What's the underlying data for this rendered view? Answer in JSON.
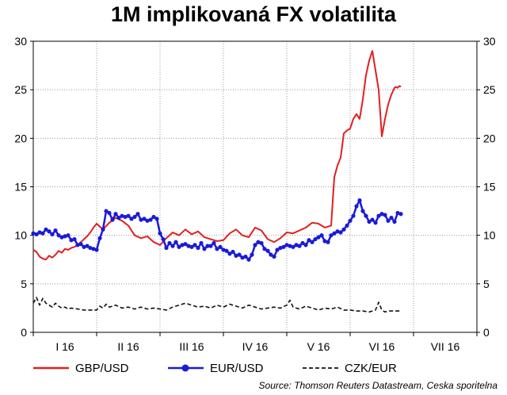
{
  "chart_data": {
    "type": "line",
    "title": "1M implikovaná FX volatilita",
    "source": "Source: Thomson Reuters Datastream, Ceska sporitelna",
    "ylim": [
      0,
      30
    ],
    "y_ticks": [
      "0",
      "5",
      "10",
      "15",
      "20",
      "25",
      "30"
    ],
    "x_categories": [
      "I 16",
      "II 16",
      "III 16",
      "IV 16",
      "V 16",
      "VI 16",
      "VII 16"
    ],
    "grid": true,
    "legend": "bottom",
    "series": [
      {
        "name": "GBP/USD",
        "color": "#e02020",
        "style": "solid",
        "t": [
          0,
          0.05,
          0.1,
          0.15,
          0.2,
          0.25,
          0.3,
          0.35,
          0.4,
          0.45,
          0.5,
          0.55,
          0.6,
          0.65,
          0.7,
          0.75,
          0.8,
          0.85,
          0.9,
          0.95,
          1.0,
          1.1,
          1.2,
          1.3,
          1.4,
          1.5,
          1.6,
          1.7,
          1.8,
          1.9,
          2.0,
          2.1,
          2.2,
          2.3,
          2.4,
          2.5,
          2.6,
          2.7,
          2.8,
          2.9,
          3.0,
          3.1,
          3.2,
          3.3,
          3.4,
          3.5,
          3.6,
          3.7,
          3.8,
          3.9,
          4.0,
          4.1,
          4.2,
          4.3,
          4.4,
          4.5,
          4.6,
          4.7,
          4.75,
          4.8,
          4.85,
          4.9,
          4.95,
          5.0,
          5.05,
          5.1,
          5.15,
          5.2,
          5.25,
          5.3,
          5.35,
          5.4,
          5.45,
          5.5,
          5.55,
          5.6,
          5.65,
          5.7,
          5.72,
          5.75,
          5.78,
          5.8
        ],
        "values": [
          8.5,
          8.3,
          7.8,
          7.6,
          7.5,
          7.9,
          7.7,
          8.0,
          8.4,
          8.2,
          8.6,
          8.5,
          8.7,
          8.8,
          9.0,
          9.3,
          9.6,
          9.9,
          10.3,
          10.8,
          11.2,
          10.6,
          11.3,
          11.8,
          11.5,
          11.0,
          10.0,
          9.7,
          9.9,
          9.3,
          9.0,
          9.7,
          10.3,
          10.0,
          10.6,
          10.1,
          10.4,
          9.8,
          9.6,
          9.4,
          9.5,
          10.2,
          10.6,
          10.0,
          9.8,
          10.8,
          10.5,
          9.6,
          9.3,
          9.7,
          10.3,
          10.2,
          10.5,
          10.8,
          11.3,
          11.2,
          10.8,
          11.0,
          16.0,
          17.2,
          18.0,
          20.5,
          20.8,
          21.0,
          22.0,
          22.5,
          22.0,
          24.0,
          26.5,
          28.0,
          29.0,
          27.0,
          25.0,
          20.2,
          22.0,
          23.5,
          24.5,
          25.2,
          25.3,
          25.2,
          25.4,
          25.3
        ]
      },
      {
        "name": "EUR/USD",
        "color": "#1a1ad8",
        "style": "solid-markers",
        "t": [
          0,
          0.05,
          0.1,
          0.15,
          0.2,
          0.25,
          0.3,
          0.35,
          0.4,
          0.45,
          0.5,
          0.55,
          0.6,
          0.65,
          0.7,
          0.75,
          0.8,
          0.85,
          0.9,
          0.95,
          1.0,
          1.05,
          1.1,
          1.15,
          1.2,
          1.25,
          1.3,
          1.35,
          1.4,
          1.45,
          1.5,
          1.55,
          1.6,
          1.65,
          1.7,
          1.75,
          1.8,
          1.85,
          1.9,
          1.95,
          2.0,
          2.05,
          2.1,
          2.15,
          2.2,
          2.25,
          2.3,
          2.35,
          2.4,
          2.45,
          2.5,
          2.55,
          2.6,
          2.65,
          2.7,
          2.75,
          2.8,
          2.85,
          2.9,
          2.95,
          3.0,
          3.05,
          3.1,
          3.15,
          3.2,
          3.25,
          3.3,
          3.35,
          3.4,
          3.45,
          3.5,
          3.55,
          3.6,
          3.65,
          3.7,
          3.75,
          3.8,
          3.85,
          3.9,
          3.95,
          4.0,
          4.05,
          4.1,
          4.15,
          4.2,
          4.25,
          4.3,
          4.35,
          4.4,
          4.45,
          4.5,
          4.55,
          4.6,
          4.65,
          4.7,
          4.75,
          4.8,
          4.85,
          4.9,
          4.95,
          5.0,
          5.05,
          5.1,
          5.15,
          5.2,
          5.25,
          5.3,
          5.35,
          5.4,
          5.45,
          5.5,
          5.55,
          5.6,
          5.65,
          5.7,
          5.75,
          5.8
        ],
        "values": [
          10.2,
          10.1,
          10.3,
          10.2,
          10.6,
          10.4,
          10.1,
          10.5,
          10.0,
          9.8,
          9.9,
          10.0,
          9.5,
          9.6,
          9.0,
          9.1,
          8.8,
          8.9,
          8.7,
          8.6,
          8.5,
          9.7,
          10.6,
          12.5,
          12.3,
          11.6,
          12.2,
          11.8,
          12.0,
          11.9,
          12.0,
          11.7,
          11.9,
          12.2,
          11.6,
          11.7,
          11.5,
          11.6,
          11.9,
          11.7,
          10.2,
          9.6,
          8.7,
          9.2,
          8.9,
          9.3,
          8.8,
          9.0,
          9.1,
          8.9,
          8.8,
          9.0,
          8.7,
          9.2,
          8.6,
          8.9,
          8.9,
          9.2,
          8.6,
          8.8,
          8.5,
          8.4,
          8.1,
          8.3,
          7.9,
          8.0,
          7.7,
          7.8,
          7.5,
          8.0,
          9.0,
          9.3,
          9.2,
          8.6,
          8.4,
          8.0,
          7.8,
          8.5,
          8.7,
          8.8,
          9.0,
          8.9,
          8.8,
          9.0,
          8.9,
          9.2,
          9.0,
          9.5,
          9.3,
          9.6,
          9.8,
          10.0,
          9.4,
          9.3,
          10.0,
          10.2,
          10.4,
          10.3,
          10.6,
          11.0,
          11.5,
          12.0,
          13.0,
          13.6,
          12.5,
          12.0,
          11.4,
          11.6,
          11.3,
          12.0,
          12.2,
          12.1,
          11.5,
          11.8,
          11.4,
          12.3,
          12.2
        ]
      },
      {
        "name": "CZK/EUR",
        "color": "#111111",
        "style": "dashed",
        "t": [
          0,
          0.05,
          0.1,
          0.15,
          0.2,
          0.25,
          0.3,
          0.35,
          0.4,
          0.45,
          0.5,
          0.55,
          0.6,
          0.7,
          0.8,
          0.9,
          1.0,
          1.05,
          1.1,
          1.15,
          1.2,
          1.3,
          1.4,
          1.5,
          1.6,
          1.7,
          1.8,
          1.9,
          2.0,
          2.1,
          2.2,
          2.3,
          2.4,
          2.5,
          2.6,
          2.7,
          2.8,
          2.9,
          3.0,
          3.1,
          3.2,
          3.3,
          3.4,
          3.5,
          3.6,
          3.7,
          3.8,
          3.9,
          4.0,
          4.05,
          4.1,
          4.2,
          4.3,
          4.4,
          4.5,
          4.6,
          4.7,
          4.8,
          4.9,
          5.0,
          5.1,
          5.2,
          5.3,
          5.35,
          5.4,
          5.45,
          5.5,
          5.55,
          5.6,
          5.7,
          5.8
        ],
        "values": [
          3.0,
          3.6,
          2.8,
          3.5,
          3.0,
          2.8,
          2.6,
          3.0,
          2.7,
          2.5,
          2.6,
          2.4,
          2.5,
          2.4,
          2.3,
          2.3,
          2.3,
          2.7,
          2.5,
          2.9,
          2.6,
          2.8,
          2.5,
          2.6,
          2.4,
          2.6,
          2.4,
          2.5,
          2.4,
          2.3,
          2.6,
          2.8,
          3.0,
          2.8,
          2.6,
          2.7,
          2.5,
          2.8,
          2.6,
          2.9,
          2.7,
          2.5,
          2.8,
          2.6,
          2.4,
          2.5,
          2.6,
          2.5,
          2.8,
          3.3,
          2.6,
          2.4,
          2.7,
          2.5,
          2.3,
          2.5,
          2.4,
          2.6,
          2.3,
          2.3,
          2.2,
          2.2,
          2.1,
          2.2,
          2.3,
          3.1,
          2.3,
          2.1,
          2.2,
          2.2,
          2.2
        ]
      }
    ]
  }
}
